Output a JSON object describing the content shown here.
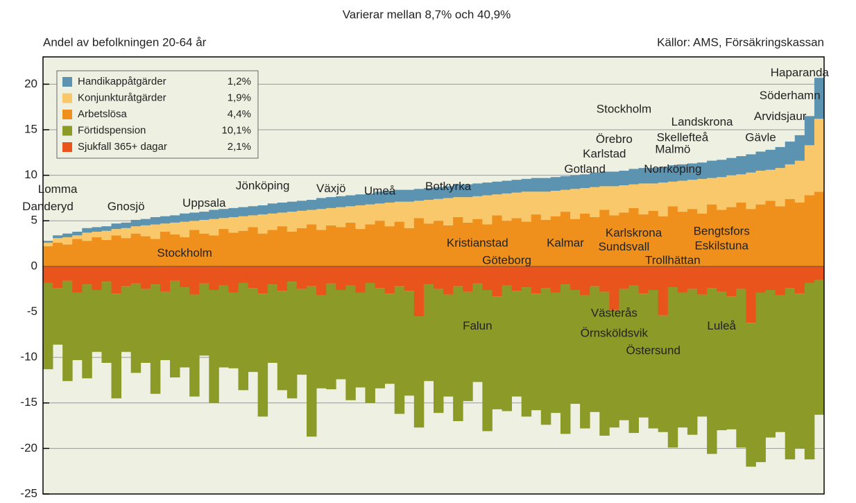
{
  "chart_data": {
    "type": "stacked_bar",
    "title": "Varierar mellan 8,7% och 40,9%",
    "subtitle": "Andel av befolkningen 20-64 år",
    "source": "Källor: AMS, Försäkringskassan",
    "ylim": [
      -25,
      23
    ],
    "yticks": [
      -25,
      -20,
      -15,
      -10,
      -5,
      0,
      5,
      10,
      15,
      20
    ],
    "grid": true,
    "legend": "upper left",
    "series": [
      {
        "name": "Handikappåtgärder",
        "share": 1.2,
        "share_label": "1,2%",
        "color": "#5b93b0",
        "values": [
          0.2,
          0.3,
          0.4,
          0.4,
          0.5,
          0.5,
          0.5,
          0.6,
          0.6,
          0.7,
          0.7,
          0.8,
          0.8,
          0.8,
          0.9,
          0.9,
          0.9,
          1.0,
          1.0,
          1.0,
          1.0,
          1.0,
          1.0,
          1.1,
          1.1,
          1.1,
          1.1,
          1.1,
          1.2,
          1.2,
          1.2,
          1.2,
          1.2,
          1.2,
          1.3,
          1.3,
          1.3,
          1.3,
          1.3,
          1.3,
          1.3,
          1.3,
          1.4,
          1.4,
          1.4,
          1.4,
          1.4,
          1.4,
          1.4,
          1.4,
          1.5,
          1.5,
          1.5,
          1.5,
          1.5,
          1.5,
          1.6,
          1.6,
          1.6,
          1.6,
          1.7,
          1.7,
          1.7,
          1.7,
          1.8,
          1.8,
          1.8,
          1.8,
          1.9,
          1.9,
          1.9,
          2.0,
          2.0,
          2.1,
          2.2,
          2.3,
          2.5,
          2.8,
          3.2,
          4.5
        ]
      },
      {
        "name": "Konjunkturåtgärder",
        "share": 1.9,
        "share_label": "1,9%",
        "color": "#f9c86a",
        "values": [
          0.4,
          0.5,
          0.8,
          0.4,
          0.9,
          0.6,
          1.0,
          0.7,
          1.1,
          0.8,
          1.2,
          1.6,
          0.9,
          1.3,
          1.7,
          1.0,
          1.5,
          1.8,
          1.2,
          1.7,
          1.6,
          1.3,
          2.1,
          1.8,
          1.5,
          2.2,
          1.9,
          1.6,
          2.3,
          1.9,
          2.2,
          1.8,
          2.6,
          2.2,
          1.9,
          2.6,
          2.2,
          2.9,
          1.9,
          2.6,
          2.4,
          3.0,
          2.2,
          2.8,
          2.5,
          3.2,
          2.3,
          3.0,
          2.8,
          3.3,
          2.5,
          3.1,
          2.8,
          2.4,
          3.3,
          2.8,
          3.3,
          2.6,
          3.2,
          3.0,
          2.6,
          3.4,
          3.0,
          3.7,
          2.7,
          3.4,
          3.2,
          3.8,
          2.9,
          3.6,
          3.5,
          3.1,
          4.0,
          3.7,
          3.4,
          4.2,
          3.8,
          4.6,
          5.5,
          8.0
        ]
      },
      {
        "name": "Arbetslösa",
        "share": 4.4,
        "share_label": "4,4%",
        "color": "#f0901c",
        "values": [
          2.2,
          2.6,
          2.4,
          3.0,
          2.8,
          3.2,
          2.9,
          3.4,
          3.1,
          3.6,
          3.3,
          3.0,
          3.8,
          3.5,
          3.2,
          4.0,
          3.6,
          3.4,
          4.1,
          3.7,
          3.9,
          4.3,
          3.6,
          4.0,
          4.4,
          3.8,
          4.2,
          4.6,
          4.0,
          4.5,
          4.3,
          4.8,
          4.1,
          4.6,
          5.0,
          4.4,
          4.9,
          4.2,
          5.3,
          4.7,
          5.0,
          4.5,
          5.4,
          4.8,
          5.2,
          4.6,
          5.6,
          5.0,
          5.3,
          4.9,
          5.7,
          5.1,
          5.5,
          6.0,
          5.2,
          5.8,
          5.4,
          6.2,
          5.6,
          5.9,
          6.4,
          5.7,
          6.1,
          5.5,
          6.6,
          6.0,
          6.3,
          5.8,
          6.8,
          6.2,
          6.5,
          7.0,
          6.3,
          6.8,
          7.2,
          6.6,
          7.4,
          7.0,
          7.8,
          8.2
        ]
      },
      {
        "name": "Förtidspension",
        "share": 10.1,
        "share_label": "10,1%",
        "color": "#8c9a28",
        "values": [
          -9.5,
          -6.2,
          -11.0,
          -7.4,
          -10.3,
          -6.8,
          -8.9,
          -11.5,
          -7.2,
          -9.8,
          -8.1,
          -12.0,
          -7.5,
          -10.6,
          -8.8,
          -11.2,
          -7.9,
          -12.4,
          -9.0,
          -8.3,
          -11.8,
          -9.2,
          -13.5,
          -8.6,
          -10.9,
          -12.8,
          -9.4,
          -16.5,
          -10.2,
          -11.6,
          -9.8,
          -12.6,
          -10.4,
          -13.2,
          -11.0,
          -9.9,
          -14.0,
          -11.5,
          -12.2,
          -10.6,
          -13.6,
          -11.2,
          -14.8,
          -12.0,
          -10.8,
          -15.5,
          -12.4,
          -13.8,
          -11.6,
          -14.2,
          -12.8,
          -15.0,
          -13.2,
          -16.4,
          -12.5,
          -14.6,
          -13.8,
          -15.8,
          -12.9,
          -14.4,
          -16.2,
          -13.6,
          -15.2,
          -12.8,
          -17.6,
          -14.8,
          -16.0,
          -13.4,
          -18.2,
          -15.2,
          -14.6,
          -17.4,
          -15.8,
          -18.6,
          -16.2,
          -15.0,
          -18.8,
          -17.0,
          -19.4,
          -14.8
        ]
      },
      {
        "name": "Sjukfall 365+ dagar",
        "share": 2.1,
        "share_label": "2,1%",
        "color": "#e8541c",
        "values": [
          -1.8,
          -2.4,
          -1.6,
          -2.9,
          -2.0,
          -2.6,
          -1.7,
          -3.0,
          -2.2,
          -1.9,
          -2.5,
          -2.0,
          -2.8,
          -1.6,
          -2.3,
          -3.1,
          -1.9,
          -2.6,
          -2.1,
          -2.9,
          -1.8,
          -2.4,
          -3.0,
          -2.0,
          -2.7,
          -1.7,
          -2.5,
          -2.2,
          -3.2,
          -1.9,
          -2.6,
          -2.1,
          -2.9,
          -1.8,
          -2.4,
          -3.0,
          -2.2,
          -2.7,
          -5.5,
          -2.0,
          -2.5,
          -3.1,
          -2.2,
          -2.8,
          -1.9,
          -2.6,
          -3.3,
          -2.1,
          -2.7,
          -2.3,
          -3.0,
          -2.4,
          -2.9,
          -2.0,
          -2.6,
          -3.2,
          -2.2,
          -2.8,
          -4.8,
          -2.5,
          -2.1,
          -3.0,
          -2.6,
          -5.4,
          -2.3,
          -2.9,
          -2.5,
          -3.1,
          -2.4,
          -2.8,
          -3.3,
          -2.5,
          -6.2,
          -2.9,
          -2.6,
          -3.2,
          -2.4,
          -3.0,
          -1.8,
          -1.5
        ]
      }
    ],
    "annotations": [
      {
        "text": "Lomma",
        "x": 1,
        "y": 8.4
      },
      {
        "text": "Danderyd",
        "x": 0,
        "y": 6.5
      },
      {
        "text": "Gnosjö",
        "x": 8,
        "y": 6.5
      },
      {
        "text": "Uppsala",
        "x": 16,
        "y": 6.9
      },
      {
        "text": "Jönköping",
        "x": 22,
        "y": 8.8
      },
      {
        "text": "Växjö",
        "x": 29,
        "y": 8.5
      },
      {
        "text": "Umeå",
        "x": 34,
        "y": 8.2
      },
      {
        "text": "Botkyrka",
        "x": 41,
        "y": 8.7
      },
      {
        "text": "Stockholm",
        "x": 59,
        "y": 17.2
      },
      {
        "text": "Landskrona",
        "x": 67,
        "y": 15.8
      },
      {
        "text": "Haparanda",
        "x": 77,
        "y": 21.2
      },
      {
        "text": "Söderhamn",
        "x": 76,
        "y": 18.7
      },
      {
        "text": "Arvidsjaur",
        "x": 75,
        "y": 16.4
      },
      {
        "text": "Örebro",
        "x": 58,
        "y": 13.9
      },
      {
        "text": "Skellefteå",
        "x": 65,
        "y": 14.1
      },
      {
        "text": "Gävle",
        "x": 73,
        "y": 14.1
      },
      {
        "text": "Karlstad",
        "x": 57,
        "y": 12.3
      },
      {
        "text": "Malmö",
        "x": 64,
        "y": 12.8
      },
      {
        "text": "Gotland",
        "x": 55,
        "y": 10.6
      },
      {
        "text": "Norrköping",
        "x": 64,
        "y": 10.6
      },
      {
        "text": "Stockholm",
        "x": 14,
        "y": 1.4
      },
      {
        "text": "Kristianstad",
        "x": 44,
        "y": 2.5
      },
      {
        "text": "Göteborg",
        "x": 47,
        "y": 0.6
      },
      {
        "text": "Kalmar",
        "x": 53,
        "y": 2.5
      },
      {
        "text": "Karlskrona",
        "x": 60,
        "y": 3.6
      },
      {
        "text": "Sundsvall",
        "x": 59,
        "y": 2.1
      },
      {
        "text": "Trollhättan",
        "x": 64,
        "y": 0.6
      },
      {
        "text": "Bengtsfors",
        "x": 69,
        "y": 3.8
      },
      {
        "text": "Eskilstuna",
        "x": 69,
        "y": 2.2
      },
      {
        "text": "Falun",
        "x": 44,
        "y": -6.6
      },
      {
        "text": "Västerås",
        "x": 58,
        "y": -5.2
      },
      {
        "text": "Örnsköldsvik",
        "x": 58,
        "y": -7.4
      },
      {
        "text": "Östersund",
        "x": 62,
        "y": -9.3
      },
      {
        "text": "Luleå",
        "x": 69,
        "y": -6.6
      }
    ]
  }
}
